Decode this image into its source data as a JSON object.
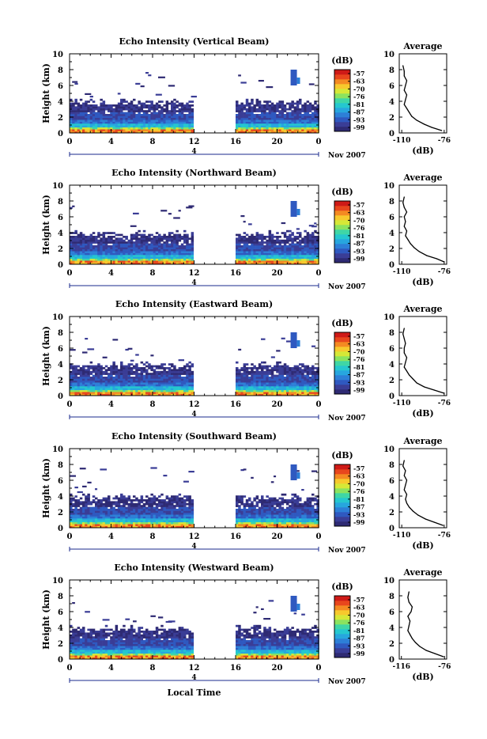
{
  "colors": {
    "colorbar": [
      "#2e2a73",
      "#3a3d96",
      "#2f59c0",
      "#2d7fd7",
      "#27a6de",
      "#25c7cf",
      "#3fd6a6",
      "#8be35f",
      "#d6e837",
      "#f7c92d",
      "#f48a22",
      "#e8461d",
      "#cf1a17"
    ],
    "background": "#ffffff",
    "frame": "#000000"
  },
  "figure": {
    "xlabel_bottom": "Local Time",
    "ylabel": "Height (km)",
    "month_label": "Nov 2007",
    "date_marker": "4",
    "colorbar_unit": "(dB)",
    "colorbar_ticks": [
      "-57",
      "-63",
      "-70",
      "-76",
      "-81",
      "-87",
      "-93",
      "-99"
    ],
    "avg_title": "Average",
    "avg_xlabel": "(dB)"
  },
  "chart_data": [
    {
      "type": "heatmap",
      "title": "Echo Intensity (Vertical Beam)",
      "x_ticks": [
        "0",
        "4",
        "8",
        "12",
        "16",
        "20",
        "0"
      ],
      "y_ticks": [
        "0",
        "2",
        "4",
        "6",
        "8",
        "10"
      ],
      "xlim": [
        0,
        24
      ],
      "ylim": [
        0,
        10
      ],
      "data_gap_hours": [
        11.8,
        16.0
      ],
      "avg_profile": {
        "type": "line",
        "title": "Average",
        "xlabel": "(dB)",
        "x_ticks": [
          "-110",
          "-76"
        ],
        "y_ticks": [
          "0",
          "2",
          "4",
          "6",
          "8",
          "10"
        ],
        "xlim": [
          -112,
          -74
        ],
        "ylim": [
          0,
          10
        ],
        "x": [
          -78,
          -86,
          -92,
          -98,
          -102,
          -104,
          -106,
          -108,
          -107,
          -106,
          -108,
          -107,
          -106,
          -108,
          -108,
          -109
        ],
        "y": [
          0.3,
          0.7,
          1.1,
          1.6,
          2.1,
          2.6,
          3.1,
          3.6,
          4.2,
          4.8,
          5.4,
          6.0,
          6.6,
          7.2,
          7.8,
          8.5
        ]
      }
    },
    {
      "type": "heatmap",
      "title": "Echo Intensity (Northward Beam)",
      "x_ticks": [
        "0",
        "4",
        "8",
        "12",
        "16",
        "20",
        "0"
      ],
      "y_ticks": [
        "0",
        "2",
        "4",
        "6",
        "8",
        "10"
      ],
      "xlim": [
        0,
        24
      ],
      "ylim": [
        0,
        10
      ],
      "data_gap_hours": [
        11.8,
        16.0
      ],
      "avg_profile": {
        "type": "line",
        "title": "Average",
        "xlabel": "(dB)",
        "x_ticks": [
          "-110",
          "-76"
        ],
        "y_ticks": [
          "0",
          "2",
          "4",
          "6",
          "8",
          "10"
        ],
        "xlim": [
          -112,
          -74
        ],
        "ylim": [
          0,
          10
        ],
        "x": [
          -76,
          -82,
          -90,
          -96,
          -100,
          -103,
          -105,
          -107,
          -106,
          -108,
          -107,
          -108,
          -106,
          -108,
          -109,
          -108
        ],
        "y": [
          0.3,
          0.7,
          1.1,
          1.6,
          2.1,
          2.6,
          3.1,
          3.6,
          4.2,
          4.8,
          5.4,
          6.0,
          6.6,
          7.2,
          7.8,
          8.5
        ]
      }
    },
    {
      "type": "heatmap",
      "title": "Echo Intensity (Eastward Beam)",
      "x_ticks": [
        "0",
        "4",
        "8",
        "12",
        "16",
        "20",
        "0"
      ],
      "y_ticks": [
        "0",
        "2",
        "4",
        "6",
        "8",
        "10"
      ],
      "xlim": [
        0,
        24
      ],
      "ylim": [
        0,
        10
      ],
      "data_gap_hours": [
        11.8,
        16.0
      ],
      "avg_profile": {
        "type": "line",
        "title": "Average",
        "xlabel": "(dB)",
        "x_ticks": [
          "-110",
          "-76"
        ],
        "y_ticks": [
          "0",
          "2",
          "4",
          "6",
          "8",
          "10"
        ],
        "xlim": [
          -112,
          -74
        ],
        "ylim": [
          0,
          10
        ],
        "x": [
          -76,
          -84,
          -92,
          -98,
          -101,
          -104,
          -106,
          -108,
          -107,
          -106,
          -108,
          -108,
          -107,
          -108,
          -109,
          -108
        ],
        "y": [
          0.3,
          0.7,
          1.1,
          1.6,
          2.1,
          2.6,
          3.1,
          3.6,
          4.2,
          4.8,
          5.4,
          6.0,
          6.6,
          7.2,
          7.8,
          8.5
        ]
      }
    },
    {
      "type": "heatmap",
      "title": "Echo Intensity (Southward Beam)",
      "x_ticks": [
        "0",
        "4",
        "8",
        "12",
        "16",
        "20",
        "0"
      ],
      "y_ticks": [
        "0",
        "2",
        "4",
        "6",
        "8",
        "10"
      ],
      "xlim": [
        0,
        24
      ],
      "ylim": [
        0,
        10
      ],
      "data_gap_hours": [
        11.8,
        16.0
      ],
      "avg_profile": {
        "type": "line",
        "title": "Average",
        "xlabel": "(dB)",
        "x_ticks": [
          "-110",
          "-76"
        ],
        "y_ticks": [
          "0",
          "2",
          "4",
          "6",
          "8",
          "10"
        ],
        "xlim": [
          -112,
          -74
        ],
        "ylim": [
          0,
          10
        ],
        "x": [
          -77,
          -84,
          -91,
          -97,
          -101,
          -104,
          -106,
          -107,
          -106,
          -108,
          -107,
          -106,
          -108,
          -107,
          -109,
          -108
        ],
        "y": [
          0.3,
          0.7,
          1.1,
          1.6,
          2.1,
          2.6,
          3.1,
          3.6,
          4.2,
          4.8,
          5.4,
          6.0,
          6.6,
          7.2,
          7.8,
          8.5
        ]
      }
    },
    {
      "type": "heatmap",
      "title": "Echo Intensity (Westward Beam)",
      "x_ticks": [
        "0",
        "4",
        "8",
        "12",
        "16",
        "20",
        "0"
      ],
      "y_ticks": [
        "0",
        "2",
        "4",
        "6",
        "8",
        "10"
      ],
      "xlim": [
        0,
        24
      ],
      "ylim": [
        0,
        10
      ],
      "data_gap_hours": [
        11.8,
        16.0
      ],
      "avg_profile": {
        "type": "line",
        "title": "Average",
        "xlabel": "(dB)",
        "x_ticks": [
          "-116",
          "-76"
        ],
        "y_ticks": [
          "0",
          "2",
          "4",
          "6",
          "8",
          "10"
        ],
        "xlim": [
          -118,
          -74
        ],
        "ylim": [
          0,
          10
        ],
        "x": [
          -77,
          -85,
          -93,
          -99,
          -103,
          -106,
          -108,
          -110,
          -109,
          -108,
          -110,
          -107,
          -106,
          -109,
          -110,
          -109
        ],
        "y": [
          0.3,
          0.7,
          1.1,
          1.6,
          2.1,
          2.6,
          3.1,
          3.6,
          4.2,
          4.8,
          5.4,
          6.0,
          6.6,
          7.2,
          7.8,
          8.5
        ]
      }
    }
  ]
}
